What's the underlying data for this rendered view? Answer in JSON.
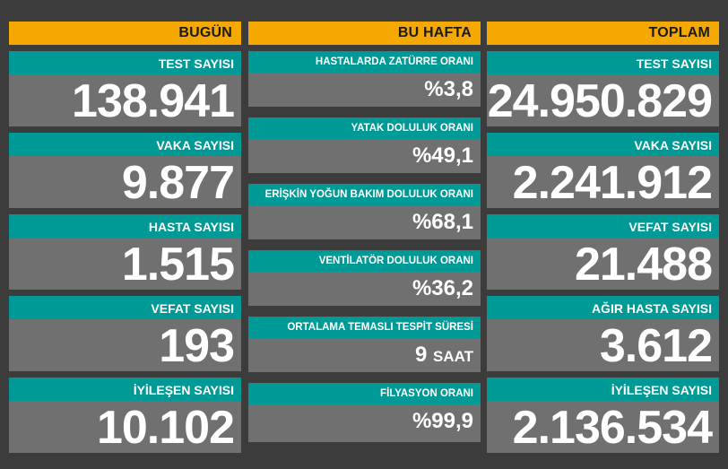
{
  "columns": {
    "bugun": {
      "header": "BUGÜN",
      "items": [
        {
          "label": "TEST SAYISI",
          "value": "138.941"
        },
        {
          "label": "VAKA SAYISI",
          "value": "9.877"
        },
        {
          "label": "HASTA SAYISI",
          "value": "1.515"
        },
        {
          "label": "VEFAT SAYISI",
          "value": "193"
        },
        {
          "label": "İYİLEŞEN SAYISI",
          "value": "10.102"
        }
      ]
    },
    "bu_hafta": {
      "header": "BU HAFTA",
      "items": [
        {
          "label": "HASTALARDA ZATÜRRE ORANI",
          "value": "%3,8"
        },
        {
          "label": "YATAK DOLULUK ORANI",
          "value": "%49,1"
        },
        {
          "label": "ERİŞKİN YOĞUN BAKIM DOLULUK ORANI",
          "value": "%68,1"
        },
        {
          "label": "VENTİLATÖR DOLULUK ORANI",
          "value": "%36,2"
        },
        {
          "label": "ORTALAMA TEMASLI TESPİT SÜRESİ",
          "value": "9",
          "unit": "SAAT"
        },
        {
          "label": "FİLYASYON ORANI",
          "value": "%99,9"
        }
      ]
    },
    "toplam": {
      "header": "TOPLAM",
      "items": [
        {
          "label": "TEST SAYISI",
          "value": "24.950.829"
        },
        {
          "label": "VAKA SAYISI",
          "value": "2.241.912"
        },
        {
          "label": "VEFAT SAYISI",
          "value": "21.488"
        },
        {
          "label": "AĞIR HASTA SAYISI",
          "value": "3.612"
        },
        {
          "label": "İYİLEŞEN SAYISI",
          "value": "2.136.534"
        }
      ]
    }
  },
  "colors": {
    "background": "#3c3c3c",
    "header": "#f5a800",
    "label": "#009a96",
    "card": "#707070",
    "text": "#ffffff"
  }
}
